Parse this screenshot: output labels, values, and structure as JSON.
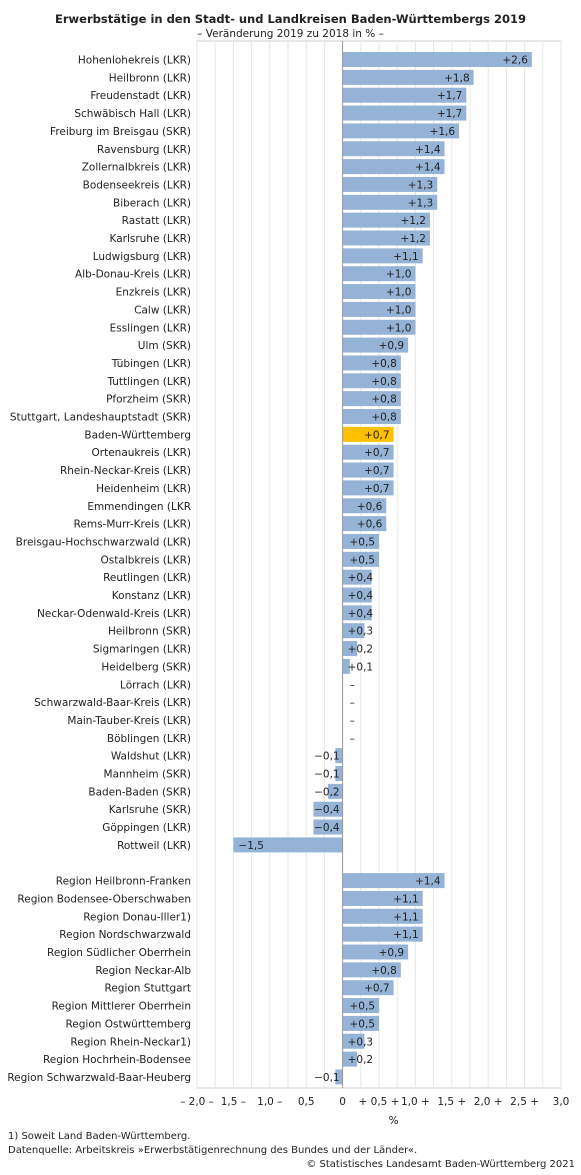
{
  "chart_data": {
    "type": "bar",
    "orientation": "horizontal",
    "title": "Erwerbstätige in den Stadt- und Landkreisen Baden-Württembergs 2019",
    "subtitle": "– Veränderung 2019 zu 2018 in % –",
    "xlabel": "%",
    "xlim": [
      -2.0,
      3.0
    ],
    "x_ticks": [
      -2.0,
      -1.5,
      -1.0,
      -0.5,
      0,
      0.5,
      1.0,
      1.5,
      2.0,
      2.5,
      3.0
    ],
    "x_tick_labels": [
      "– 2,0 –",
      "1,5 –",
      "1,0 –",
      "0,5",
      "0",
      "+ 0,5 +",
      "1,0 +",
      "1,5 +",
      "2,0 +",
      "2,5 +",
      "3,0"
    ],
    "grid": true,
    "colors": {
      "bar": "#95b3d7",
      "highlight": "#ffc000",
      "bar_edge": "#7f9fc6",
      "grid": "#e6e6e6"
    },
    "groups": [
      {
        "name": "kreise",
        "categories": [
          "Hohenlohekreis (LKR)",
          "Heilbronn (LKR)",
          "Freudenstadt (LKR)",
          "Schwäbisch Hall (LKR)",
          "Freiburg im Breisgau (SKR)",
          "Ravensburg (LKR)",
          "Zollernalbkreis (LKR)",
          "Bodenseekreis (LKR)",
          "Biberach (LKR)",
          "Rastatt (LKR)",
          "Karlsruhe (LKR)",
          "Ludwigsburg (LKR)",
          "Alb-Donau-Kreis (LKR)",
          "Enzkreis (LKR)",
          "Calw (LKR)",
          "Esslingen (LKR)",
          "Ulm (SKR)",
          "Tübingen (LKR)",
          "Tuttlingen (LKR)",
          "Pforzheim (SKR)",
          "Stuttgart, Landeshauptstadt (SKR)",
          "Baden-Württemberg",
          "Ortenaukreis (LKR)",
          "Rhein-Neckar-Kreis (LKR)",
          "Heidenheim (LKR)",
          "Emmendingen (LKR",
          "Rems-Murr-Kreis (LKR)",
          "Breisgau-Hochschwarzwald (LKR)",
          "Ostalbkreis (LKR)",
          "Reutlingen (LKR)",
          "Konstanz (LKR)",
          "Neckar-Odenwald-Kreis (LKR)",
          "Heilbronn (SKR)",
          "Sigmaringen (LKR)",
          "Heidelberg (SKR)",
          "Lörrach (LKR)",
          "Schwarzwald-Baar-Kreis (LKR)",
          "Main-Tauber-Kreis (LKR)",
          "Böblingen (LKR)",
          "Waldshut (LKR)",
          "Mannheim (SKR)",
          "Baden-Baden (SKR)",
          "Karlsruhe (SKR)",
          "Göppingen (LKR)",
          "Rottweil (LKR)"
        ],
        "values": [
          2.6,
          1.8,
          1.7,
          1.7,
          1.6,
          1.4,
          1.4,
          1.3,
          1.3,
          1.2,
          1.2,
          1.1,
          1.0,
          1.0,
          1.0,
          1.0,
          0.9,
          0.8,
          0.8,
          0.8,
          0.8,
          0.7,
          0.7,
          0.7,
          0.7,
          0.6,
          0.6,
          0.5,
          0.5,
          0.4,
          0.4,
          0.4,
          0.3,
          0.2,
          0.1,
          0,
          0,
          0,
          0,
          -0.1,
          -0.1,
          -0.2,
          -0.4,
          -0.4,
          -1.5
        ],
        "value_labels": [
          "+2,6",
          "+1,8",
          "+1,7",
          "+1,7",
          "+1,6",
          "+1,4",
          "+1,4",
          "+1,3",
          "+1,3",
          "+1,2",
          "+1,2",
          "+1,1",
          "+1,0",
          "+1,0",
          "+1,0",
          "+1,0",
          "+0,9",
          "+0,8",
          "+0,8",
          "+0,8",
          "+0,8",
          "+0,7",
          "+0,7",
          "+0,7",
          "+0,7",
          "+0,6",
          "+0,6",
          "+0,5",
          "+0,5",
          "+0,4",
          "+0,4",
          "+0,4",
          "+0,3",
          "+0,2",
          "+0,1",
          "–",
          "–",
          "–",
          "–",
          "−0,1",
          "−0,1",
          "−0,2",
          "−0,4",
          "−0,4",
          "−1,5"
        ],
        "highlight": [
          "Baden-Württemberg"
        ]
      },
      {
        "name": "regionen",
        "categories": [
          "Region Heilbronn-Franken",
          "Region Bodensee-Oberschwaben",
          "Region Donau-Iller1)",
          "Region Nordschwarzwald",
          "Region Südlicher Oberrhein",
          "Region Neckar-Alb",
          "Region Stuttgart",
          "Region Mittlerer Oberrhein",
          "Region Ostwürttemberg",
          "Region Rhein-Neckar1)",
          "Region Hochrhein-Bodensee",
          "Region Schwarzwald-Baar-Heuberg"
        ],
        "values": [
          1.4,
          1.1,
          1.1,
          1.1,
          0.9,
          0.8,
          0.7,
          0.5,
          0.5,
          0.3,
          0.2,
          -0.1
        ],
        "value_labels": [
          "+1,4",
          "+1,1",
          "+1,1",
          "+1,1",
          "+0,9",
          "+0,8",
          "+0,7",
          "+0,5",
          "+0,5",
          "+0,3",
          "+0,2",
          "−0,1"
        ],
        "highlight": []
      }
    ]
  },
  "footnotes": {
    "note1": "1) Soweit Land Baden-Württemberg.",
    "source": "Datenquelle: Arbeitskreis »Erwerbstätigenrechnung des Bundes und der Länder«.",
    "copyright": "© Statistisches Landesamt Baden-Württemberg 2021"
  }
}
